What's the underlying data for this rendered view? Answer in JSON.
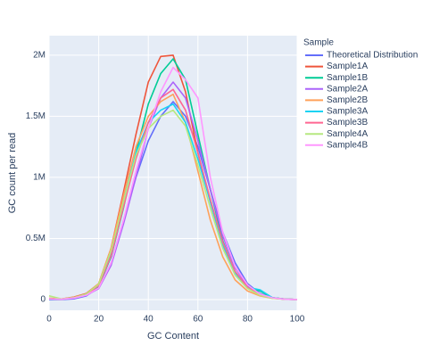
{
  "chart_data": {
    "type": "line",
    "x_label": "GC Content",
    "y_label": "GC count per read",
    "legend_title": "Sample",
    "x": [
      0,
      5,
      10,
      15,
      20,
      25,
      30,
      35,
      40,
      45,
      50,
      55,
      60,
      65,
      70,
      75,
      80,
      85,
      90,
      95,
      100
    ],
    "series": [
      {
        "name": "Theoretical Distribution",
        "color": "#636efa",
        "values": [
          0,
          0,
          5000,
          30000,
          100000,
          300000,
          650000,
          1000000,
          1300000,
          1500000,
          1620000,
          1500000,
          1250000,
          900000,
          550000,
          300000,
          130000,
          50000,
          15000,
          3000,
          0
        ]
      },
      {
        "name": "Sample1A",
        "color": "#EF553B",
        "values": [
          10000,
          5000,
          20000,
          50000,
          130000,
          420000,
          880000,
          1350000,
          1780000,
          1990000,
          2000000,
          1700000,
          1200000,
          800000,
          450000,
          220000,
          100000,
          40000,
          15000,
          5000,
          0
        ]
      },
      {
        "name": "Sample1B",
        "color": "#00cc96",
        "values": [
          5000,
          3000,
          15000,
          40000,
          110000,
          350000,
          750000,
          1200000,
          1600000,
          1850000,
          1970000,
          1800000,
          1350000,
          900000,
          480000,
          230000,
          100000,
          70000,
          15000,
          4000,
          0
        ]
      },
      {
        "name": "Sample2A",
        "color": "#ab63fa",
        "values": [
          5000,
          3000,
          12000,
          35000,
          90000,
          280000,
          620000,
          1000000,
          1400000,
          1650000,
          1780000,
          1650000,
          1300000,
          900000,
          520000,
          260000,
          110000,
          40000,
          12000,
          3000,
          0
        ]
      },
      {
        "name": "Sample2B",
        "color": "#FFA15A",
        "values": [
          8000,
          4000,
          18000,
          45000,
          130000,
          420000,
          850000,
          1250000,
          1500000,
          1620000,
          1680000,
          1450000,
          1050000,
          650000,
          350000,
          160000,
          70000,
          30000,
          10000,
          3000,
          0
        ]
      },
      {
        "name": "Sample3A",
        "color": "#19d3f3",
        "values": [
          6000,
          3000,
          15000,
          40000,
          120000,
          380000,
          800000,
          1200000,
          1450000,
          1550000,
          1600000,
          1450000,
          1150000,
          800000,
          450000,
          220000,
          100000,
          80000,
          15000,
          4000,
          0
        ]
      },
      {
        "name": "Sample3B",
        "color": "#FF6692",
        "values": [
          6000,
          3000,
          15000,
          40000,
          115000,
          360000,
          760000,
          1150000,
          1450000,
          1650000,
          1720000,
          1550000,
          1200000,
          820000,
          470000,
          230000,
          100000,
          40000,
          12000,
          3000,
          0
        ]
      },
      {
        "name": "Sample4A",
        "color": "#B6E880",
        "values": [
          30000,
          5000,
          15000,
          45000,
          125000,
          400000,
          800000,
          1180000,
          1400000,
          1500000,
          1550000,
          1420000,
          1100000,
          750000,
          420000,
          200000,
          90000,
          35000,
          10000,
          3000,
          0
        ]
      },
      {
        "name": "Sample4B",
        "color": "#FF97FF",
        "values": [
          5000,
          3000,
          12000,
          35000,
          95000,
          300000,
          650000,
          1050000,
          1400000,
          1700000,
          1900000,
          1800000,
          1650000,
          1000000,
          550000,
          270000,
          120000,
          45000,
          14000,
          3000,
          0
        ]
      }
    ],
    "xlim": [
      0,
      100
    ],
    "xticks": [
      0,
      20,
      40,
      60,
      80,
      100
    ],
    "ylim": [
      -88000,
      2160000
    ],
    "yticks": [
      0,
      {
        "value": 500000,
        "label": "0.5M"
      },
      {
        "value": 1000000,
        "label": "1M"
      },
      {
        "value": 1500000,
        "label": "1.5M"
      },
      {
        "value": 2000000,
        "label": "2M"
      }
    ],
    "grid": true
  }
}
